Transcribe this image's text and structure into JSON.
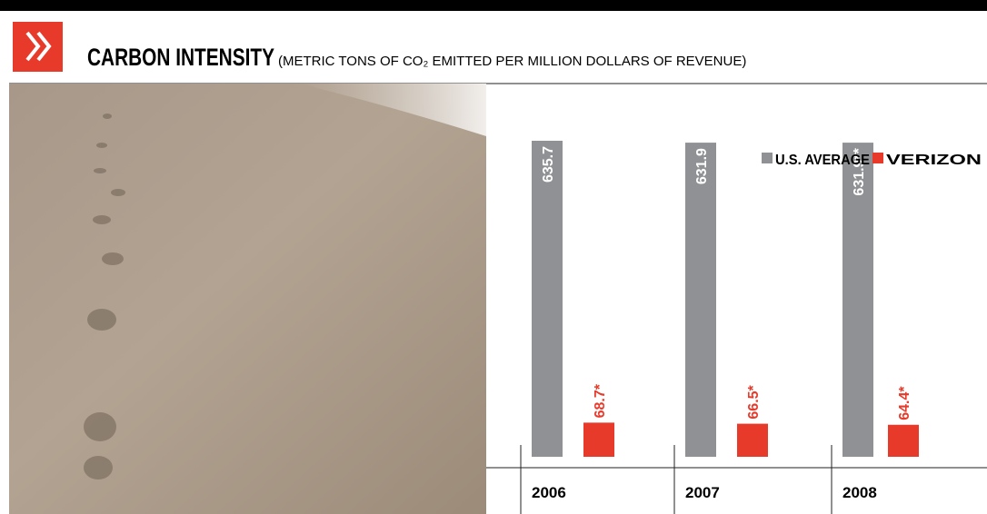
{
  "chart_data": {
    "type": "bar",
    "title": "CARBON INTENSITY",
    "subtitle": "(METRIC TONS OF CO₂ EMITTED PER MILLION DOLLARS OF REVENUE)",
    "categories": [
      "2006",
      "2007",
      "2008"
    ],
    "series": [
      {
        "name": "U.S. AVERAGE",
        "color": "#8f9194",
        "values": [
          635.7,
          631.9,
          631.9
        ],
        "value_labels": [
          "635.7",
          "631.9",
          "631.9**"
        ]
      },
      {
        "name": "VERIZON",
        "color": "#e83a2b",
        "values": [
          68.7,
          66.5,
          64.4
        ],
        "value_labels": [
          "68.7*",
          "66.5*",
          "64.4*"
        ]
      }
    ],
    "legend": "top-right"
  }
}
